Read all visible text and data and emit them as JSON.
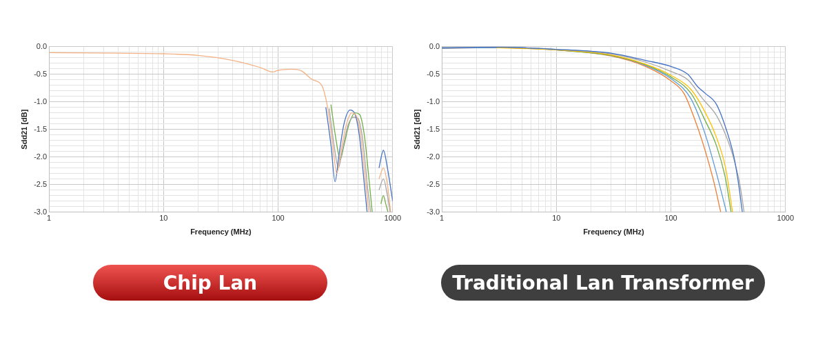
{
  "chart_data": [
    {
      "type": "line",
      "xlabel": "Frequency (MHz)",
      "ylabel": "Sdd21 [dB]",
      "annotations": [
        "Chip Lan"
      ],
      "log": "x",
      "grid": true,
      "xlim": [
        1,
        1000
      ],
      "ylim": [
        -3,
        0
      ],
      "xticks": [
        1,
        {
          "value": 2,
          "label": null
        },
        {
          "value": 3,
          "label": null
        },
        {
          "value": 4,
          "label": null
        },
        {
          "value": 5,
          "label": null
        },
        {
          "value": 6,
          "label": null
        },
        {
          "value": 7,
          "label": null
        },
        {
          "value": 8,
          "label": null
        },
        {
          "value": 9,
          "label": null
        },
        10,
        {
          "value": 20,
          "label": null
        },
        {
          "value": 30,
          "label": null
        },
        {
          "value": 40,
          "label": null
        },
        {
          "value": 50,
          "label": null
        },
        {
          "value": 60,
          "label": null
        },
        {
          "value": 70,
          "label": null
        },
        {
          "value": 80,
          "label": null
        },
        {
          "value": 90,
          "label": null
        },
        100,
        {
          "value": 200,
          "label": null
        },
        {
          "value": 300,
          "label": null
        },
        {
          "value": 400,
          "label": null
        },
        {
          "value": 500,
          "label": null
        },
        {
          "value": 600,
          "label": null
        },
        {
          "value": 700,
          "label": null
        },
        {
          "value": 800,
          "label": null
        },
        {
          "value": 900,
          "label": null
        },
        1000
      ],
      "yticks": [
        {
          "value": -3,
          "label": "-3.0"
        },
        {
          "value": -2.9,
          "label": null
        },
        {
          "value": -2.8,
          "label": null
        },
        {
          "value": -2.7,
          "label": null
        },
        {
          "value": -2.6,
          "label": null
        },
        {
          "value": -2.5,
          "label": "-2.5"
        },
        {
          "value": -2.4,
          "label": null
        },
        {
          "value": -2.3,
          "label": null
        },
        {
          "value": -2.2,
          "label": null
        },
        {
          "value": -2.1,
          "label": null
        },
        {
          "value": -2,
          "label": "-2.0"
        },
        {
          "value": -1.9,
          "label": null
        },
        {
          "value": -1.8,
          "label": null
        },
        {
          "value": -1.7,
          "label": null
        },
        {
          "value": -1.6,
          "label": null
        },
        {
          "value": -1.5,
          "label": "-1.5"
        },
        {
          "value": -1.4,
          "label": null
        },
        {
          "value": -1.3,
          "label": null
        },
        {
          "value": -1.2,
          "label": null
        },
        {
          "value": -1.1,
          "label": null
        },
        {
          "value": -1,
          "label": "-1.0"
        },
        {
          "value": -0.9,
          "label": null
        },
        {
          "value": -0.8,
          "label": null
        },
        {
          "value": -0.7,
          "label": null
        },
        {
          "value": -0.6,
          "label": null
        },
        {
          "value": -0.5,
          "label": "-0.5"
        },
        {
          "value": -0.4,
          "label": null
        },
        {
          "value": -0.3,
          "label": null
        },
        {
          "value": -0.2,
          "label": null
        },
        {
          "value": -0.1,
          "label": null
        },
        {
          "value": 0,
          "label": "0.0"
        }
      ],
      "series": [
        {
          "color": "#f4b183",
          "x": [
            1,
            4,
            10,
            20,
            40,
            70,
            90,
            100,
            130,
            160,
            200,
            240,
            270,
            300,
            325,
            350,
            390,
            440,
            480,
            530,
            580,
            620,
            690,
            760,
            830,
            900,
            960
          ],
          "values": [
            -0.11,
            -0.12,
            -0.13,
            -0.16,
            -0.25,
            -0.38,
            -0.46,
            -0.43,
            -0.41,
            -0.44,
            -0.6,
            -0.7,
            -1.1,
            -1.8,
            -2.3,
            -1.95,
            -1.45,
            -1.2,
            -1.25,
            -1.65,
            -2.45,
            -3,
            null,
            -2.4,
            -2.2,
            -2.5,
            -3
          ]
        },
        {
          "color": "#4472c4",
          "x": [
            261,
            290,
            314,
            338,
            376,
            425,
            463,
            511,
            560,
            598,
            680,
            760,
            830,
            900,
            1000
          ],
          "values": [
            -1.1,
            -1.8,
            -2.45,
            -2.0,
            -1.4,
            -1.15,
            -1.2,
            -1.6,
            -2.4,
            -3,
            null,
            -2.2,
            -1.88,
            -2.2,
            -2.8
          ]
        },
        {
          "color": "#a5a5a5",
          "x": [
            279,
            311,
            336,
            362,
            404,
            455,
            497,
            549,
            600,
            642,
            700,
            760,
            830,
            900,
            950
          ],
          "values": [
            -1.12,
            -1.85,
            -2.2,
            -1.9,
            -1.45,
            -1.28,
            -1.3,
            -1.7,
            -2.5,
            -3,
            null,
            -2.6,
            -2.4,
            -2.7,
            -3
          ]
        },
        {
          "color": "#70ad47",
          "x": [
            289,
            321,
            348,
            375,
            417,
            471,
            514,
            567,
            621,
            663,
            740,
            790,
            830,
            870,
            910
          ],
          "values": [
            -1.05,
            -1.7,
            -2.05,
            -1.8,
            -1.4,
            -1.2,
            -1.23,
            -1.62,
            -2.4,
            -3,
            null,
            -2.85,
            -2.7,
            -2.85,
            -3
          ]
        }
      ]
    },
    {
      "type": "line",
      "xlabel": "Frequency (MHz)",
      "ylabel": "Sdd21 [dB]",
      "annotations": [
        "Traditional Lan Transformer"
      ],
      "log": "x",
      "grid": true,
      "xlim": [
        1,
        1000
      ],
      "ylim": [
        -3,
        0
      ],
      "xticks": [
        1,
        {
          "value": 2,
          "label": null
        },
        {
          "value": 3,
          "label": null
        },
        {
          "value": 4,
          "label": null
        },
        {
          "value": 5,
          "label": null
        },
        {
          "value": 6,
          "label": null
        },
        {
          "value": 7,
          "label": null
        },
        {
          "value": 8,
          "label": null
        },
        {
          "value": 9,
          "label": null
        },
        10,
        {
          "value": 20,
          "label": null
        },
        {
          "value": 30,
          "label": null
        },
        {
          "value": 40,
          "label": null
        },
        {
          "value": 50,
          "label": null
        },
        {
          "value": 60,
          "label": null
        },
        {
          "value": 70,
          "label": null
        },
        {
          "value": 80,
          "label": null
        },
        {
          "value": 90,
          "label": null
        },
        100,
        {
          "value": 200,
          "label": null
        },
        {
          "value": 300,
          "label": null
        },
        {
          "value": 400,
          "label": null
        },
        {
          "value": 500,
          "label": null
        },
        {
          "value": 600,
          "label": null
        },
        {
          "value": 700,
          "label": null
        },
        {
          "value": 800,
          "label": null
        },
        {
          "value": 900,
          "label": null
        },
        1000
      ],
      "yticks": [
        {
          "value": -3,
          "label": "-3.0"
        },
        {
          "value": -2.9,
          "label": null
        },
        {
          "value": -2.8,
          "label": null
        },
        {
          "value": -2.7,
          "label": null
        },
        {
          "value": -2.6,
          "label": null
        },
        {
          "value": -2.5,
          "label": "-2.5"
        },
        {
          "value": -2.4,
          "label": null
        },
        {
          "value": -2.3,
          "label": null
        },
        {
          "value": -2.2,
          "label": null
        },
        {
          "value": -2.1,
          "label": null
        },
        {
          "value": -2,
          "label": "-2.0"
        },
        {
          "value": -1.9,
          "label": null
        },
        {
          "value": -1.8,
          "label": null
        },
        {
          "value": -1.7,
          "label": null
        },
        {
          "value": -1.6,
          "label": null
        },
        {
          "value": -1.5,
          "label": "-1.5"
        },
        {
          "value": -1.4,
          "label": null
        },
        {
          "value": -1.3,
          "label": null
        },
        {
          "value": -1.2,
          "label": null
        },
        {
          "value": -1.1,
          "label": null
        },
        {
          "value": -1,
          "label": "-1.0"
        },
        {
          "value": -0.9,
          "label": null
        },
        {
          "value": -0.8,
          "label": null
        },
        {
          "value": -0.7,
          "label": null
        },
        {
          "value": -0.6,
          "label": null
        },
        {
          "value": -0.5,
          "label": "-0.5"
        },
        {
          "value": -0.4,
          "label": null
        },
        {
          "value": -0.3,
          "label": null
        },
        {
          "value": -0.2,
          "label": null
        },
        {
          "value": -0.1,
          "label": null
        },
        {
          "value": 0,
          "label": "0.0"
        }
      ],
      "series": [
        {
          "color": "#4472c4",
          "x": [
            1,
            3,
            10,
            30,
            60,
            100,
            140,
            170,
            200,
            250,
            315,
            355,
            390,
            420
          ],
          "values": [
            -0.02,
            -0.01,
            -0.05,
            -0.12,
            -0.25,
            -0.36,
            -0.5,
            -0.72,
            -0.85,
            -1.05,
            -1.6,
            -2.0,
            -2.5,
            -3
          ]
        },
        {
          "color": "#a5a5a5",
          "x": [
            1,
            3,
            10,
            30,
            60,
            100,
            140,
            190,
            250,
            300,
            350,
            400,
            435
          ],
          "values": [
            -0.02,
            -0.01,
            -0.05,
            -0.13,
            -0.28,
            -0.45,
            -0.6,
            -0.95,
            -1.25,
            -1.6,
            -2.0,
            -2.5,
            -3
          ]
        },
        {
          "color": "#ffc000",
          "x": [
            3,
            10,
            30,
            60,
            100,
            150,
            200,
            250,
            300,
            345
          ],
          "values": [
            -0.02,
            -0.06,
            -0.15,
            -0.32,
            -0.52,
            -0.78,
            -1.2,
            -1.65,
            -2.2,
            -3
          ]
        },
        {
          "color": "#70ad47",
          "x": [
            10,
            30,
            60,
            100,
            150,
            200,
            250,
            300,
            335
          ],
          "values": [
            -0.06,
            -0.16,
            -0.33,
            -0.55,
            -0.85,
            -1.35,
            -1.8,
            -2.4,
            -3
          ]
        },
        {
          "color": "#5b9bd5",
          "x": [
            1,
            3,
            10,
            30,
            60,
            100,
            150,
            200,
            250,
            305
          ],
          "values": [
            -0.03,
            -0.02,
            -0.06,
            -0.16,
            -0.34,
            -0.58,
            -0.95,
            -1.6,
            -2.3,
            -3
          ]
        },
        {
          "color": "#ed7d31",
          "x": [
            1,
            3,
            10,
            30,
            60,
            100,
            130,
            160,
            200,
            240,
            272
          ],
          "values": [
            -0.03,
            -0.02,
            -0.06,
            -0.17,
            -0.36,
            -0.62,
            -0.85,
            -1.3,
            -1.9,
            -2.5,
            -3
          ]
        }
      ]
    }
  ]
}
